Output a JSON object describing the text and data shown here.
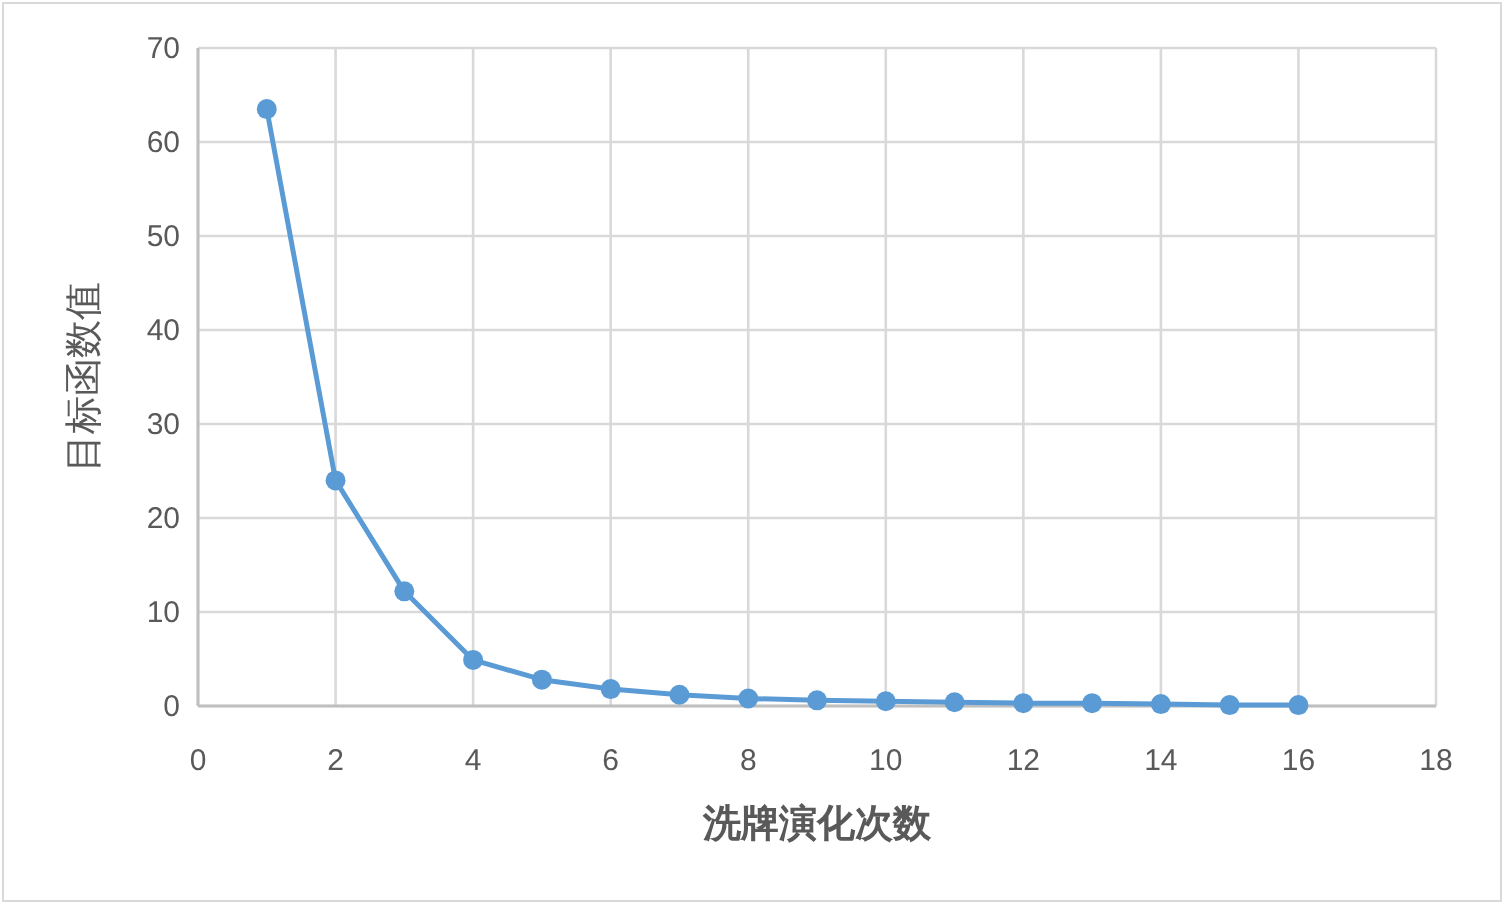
{
  "chart_data": {
    "type": "line",
    "xlabel": "洗牌演化次数",
    "ylabel": "目标函数值",
    "x": [
      1,
      2,
      3,
      4,
      5,
      6,
      7,
      8,
      9,
      10,
      11,
      12,
      13,
      14,
      15,
      16
    ],
    "series": [
      {
        "color": "#5b9bd5",
        "values": [
          63.5,
          24,
          12.2,
          4.9,
          2.8,
          1.8,
          1.2,
          0.8,
          0.6,
          0.5,
          0.4,
          0.3,
          0.3,
          0.2,
          0.1,
          0.1
        ]
      }
    ],
    "xlim": [
      0,
      18
    ],
    "xticks": [
      0,
      2,
      4,
      6,
      8,
      10,
      12,
      14,
      16,
      18
    ],
    "ylim": [
      0,
      70
    ],
    "yticks": [
      0,
      10,
      20,
      30,
      40,
      50,
      60,
      70
    ],
    "grid": true,
    "marker": "circle",
    "line_style": "solid"
  }
}
